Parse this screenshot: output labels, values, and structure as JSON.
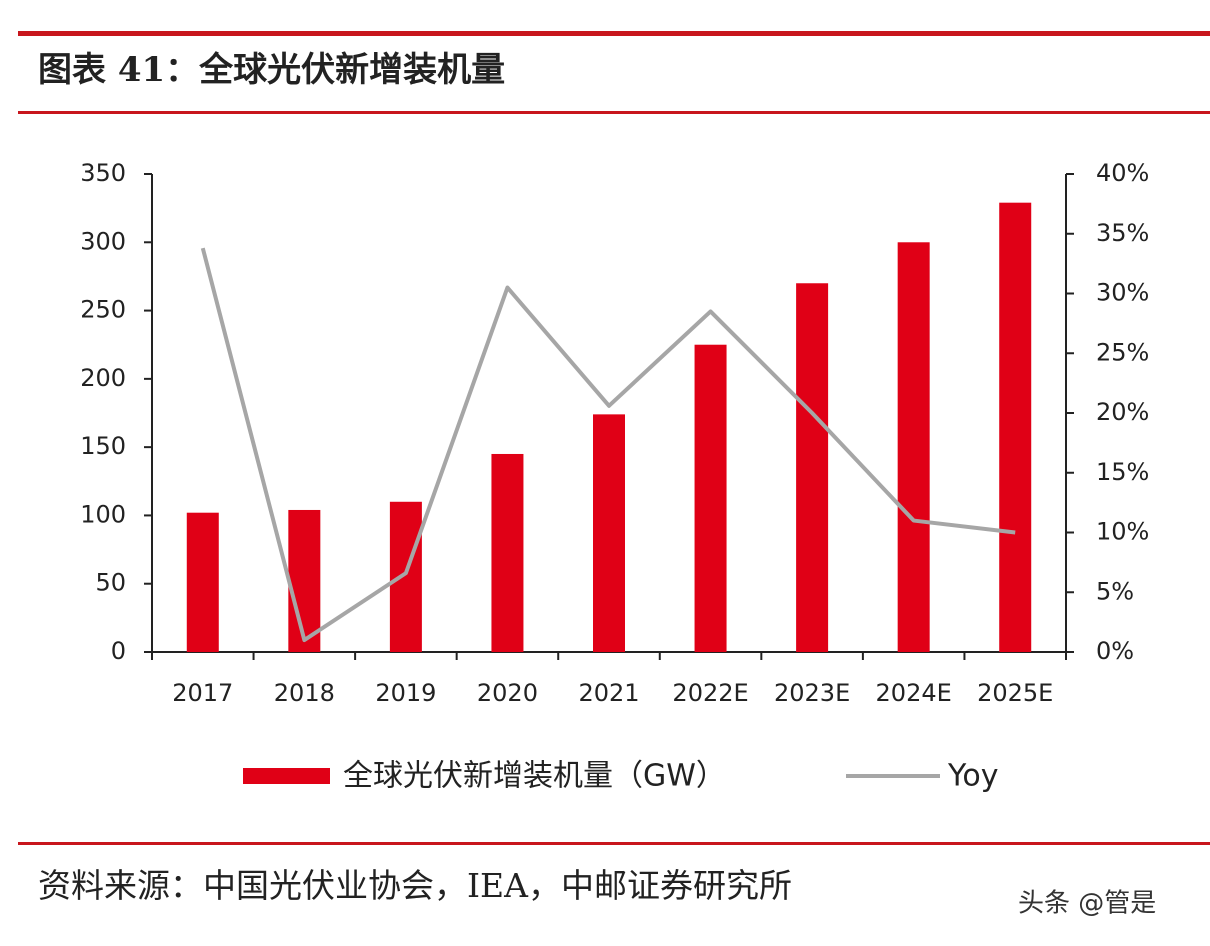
{
  "title": "图表 41：全球光伏新增装机量",
  "source": "资料来源：中国光伏业协会，IEA，中邮证券研究所",
  "watermark": "头条 @管是",
  "chart_data": {
    "type": "bar",
    "categories": [
      "2017",
      "2018",
      "2019",
      "2020",
      "2021",
      "2022E",
      "2023E",
      "2024E",
      "2025E"
    ],
    "series": [
      {
        "name": "全球光伏新增装机量（GW）",
        "type": "bar",
        "color": "#e00016",
        "values": [
          102,
          104,
          110,
          145,
          174,
          225,
          270,
          300,
          329
        ]
      },
      {
        "name": "Yoy",
        "type": "line",
        "axis": "y2",
        "color": "#a6a6a6",
        "values": [
          33.8,
          1.0,
          6.6,
          30.5,
          20.6,
          28.5,
          20.0,
          11.0,
          10.0
        ]
      }
    ],
    "ylim": [
      0,
      350
    ],
    "yticks": [
      0,
      50,
      100,
      150,
      200,
      250,
      300,
      350
    ],
    "y2lim": [
      0,
      40
    ],
    "y2ticks": [
      {
        "value": 0,
        "label": "0%"
      },
      {
        "value": 5,
        "label": "5%"
      },
      {
        "value": 10,
        "label": "10%"
      },
      {
        "value": 15,
        "label": "15%"
      },
      {
        "value": 20,
        "label": "20%"
      },
      {
        "value": 25,
        "label": "25%"
      },
      {
        "value": 30,
        "label": "30%"
      },
      {
        "value": 35,
        "label": "35%"
      },
      {
        "value": 40,
        "label": "40%"
      }
    ],
    "grid": false
  }
}
